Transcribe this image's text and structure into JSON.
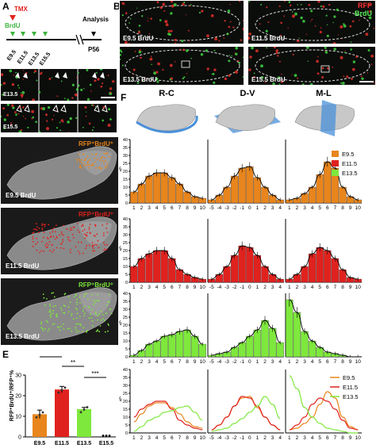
{
  "panel_letters": {
    "A": "A",
    "B": "B",
    "C": "C",
    "D": "D",
    "E": "E",
    "F": "F"
  },
  "panelA": {
    "tmx": "TMX",
    "brdu": "BrdU",
    "ticks": [
      "E9.5",
      "E11.5",
      "E13.5",
      "E15.5"
    ],
    "analysis": "Analysis",
    "p56": "P56"
  },
  "panelB": {
    "legend_rfp": "RFP",
    "legend_brdu": "BrdU",
    "images": [
      {
        "label": "E9.5 BrdU"
      },
      {
        "label": "E11.5 BrdU"
      },
      {
        "label": "E13.5 BrdU"
      },
      {
        "label": "E15.5 BrdU"
      }
    ]
  },
  "panelC": {
    "labels": [
      "E13.5",
      "E15.5"
    ]
  },
  "panelD": {
    "images": [
      {
        "title": "RFP⁺BrdU⁺",
        "label": "E9.5 BrdU",
        "color": "#e8851c"
      },
      {
        "title": "RFP⁺BrdU⁺",
        "label": "E11.5 BrdU",
        "color": "#e0221e"
      },
      {
        "title": "RFP⁺BrdU⁺",
        "label": "E13.5 BrdU",
        "color": "#7ee83c"
      }
    ]
  },
  "panelE": {
    "ylabel": "RFP⁺BrdU⁺/RFP⁺%",
    "yticks": [
      "0",
      "10",
      "20",
      "30"
    ],
    "sig": [
      "**",
      "**",
      "***"
    ],
    "categories": [
      "E9.5",
      "E11.5",
      "E13.5",
      "E15.5"
    ]
  },
  "panelF": {
    "columns": [
      "R-C",
      "D-V",
      "M-L"
    ],
    "legend": [
      {
        "name": "E9.5",
        "color": "#e8851c"
      },
      {
        "name": "E11.5",
        "color": "#e0221e"
      },
      {
        "name": "E13.5",
        "color": "#7ee83c"
      }
    ],
    "ylabel": "%",
    "yticks": [
      "0",
      "5",
      "10",
      "15",
      "20",
      "25",
      "30",
      "35",
      "40"
    ],
    "xticks": {
      "R-C": [
        "1",
        "2",
        "3",
        "4",
        "5",
        "6",
        "7",
        "8",
        "9",
        "10"
      ],
      "D-V": [
        "-5",
        "-4",
        "-3",
        "-2",
        "-1",
        "0",
        "1",
        "2",
        "3",
        "4"
      ],
      "M-L": [
        "1",
        "2",
        "3",
        "4",
        "5",
        "6",
        "7",
        "8",
        "9",
        "10"
      ]
    }
  },
  "chart_data": [
    {
      "type": "bar",
      "title": "",
      "categories": [
        "E9.5",
        "E11.5",
        "E13.5",
        "E15.5"
      ],
      "values": [
        11,
        23,
        13.5,
        0
      ],
      "errors": [
        2,
        1.5,
        0.8,
        0
      ],
      "ylabel": "RFP⁺BrdU⁺/RFP⁺%",
      "ylim": [
        0,
        30
      ],
      "colors": [
        "#e8851c",
        "#e0221e",
        "#7ee83c",
        "#000000"
      ]
    },
    {
      "type": "bar",
      "panel": "F",
      "ylim": [
        0,
        40
      ],
      "series": [
        {
          "name": "E9.5",
          "axis": "R-C",
          "values": [
            7,
            12,
            17,
            19,
            19,
            16,
            12,
            7,
            4,
            3
          ]
        },
        {
          "name": "E9.5",
          "axis": "D-V",
          "values": [
            2,
            5,
            10,
            17,
            22,
            23,
            16,
            10,
            5,
            2
          ]
        },
        {
          "name": "E9.5",
          "axis": "M-L",
          "values": [
            2,
            3,
            6,
            10,
            18,
            26,
            22,
            10,
            4,
            2
          ]
        },
        {
          "name": "E11.5",
          "axis": "R-C",
          "values": [
            10,
            15,
            18,
            20,
            20,
            15,
            8,
            5,
            3,
            2
          ]
        },
        {
          "name": "E11.5",
          "axis": "D-V",
          "values": [
            2,
            5,
            10,
            17,
            23,
            22,
            17,
            10,
            5,
            2
          ]
        },
        {
          "name": "E11.5",
          "axis": "M-L",
          "values": [
            2,
            5,
            10,
            18,
            22,
            20,
            15,
            8,
            3,
            2
          ]
        },
        {
          "name": "E13.5",
          "axis": "R-C",
          "values": [
            1,
            4,
            8,
            10,
            13,
            14,
            16,
            17,
            13,
            8
          ]
        },
        {
          "name": "E13.5",
          "axis": "D-V",
          "values": [
            1,
            2,
            3,
            6,
            9,
            13,
            17,
            23,
            18,
            9
          ]
        },
        {
          "name": "E13.5",
          "axis": "M-L",
          "values": [
            36,
            28,
            16,
            10,
            6,
            3,
            2,
            1,
            0,
            0
          ]
        }
      ]
    }
  ]
}
